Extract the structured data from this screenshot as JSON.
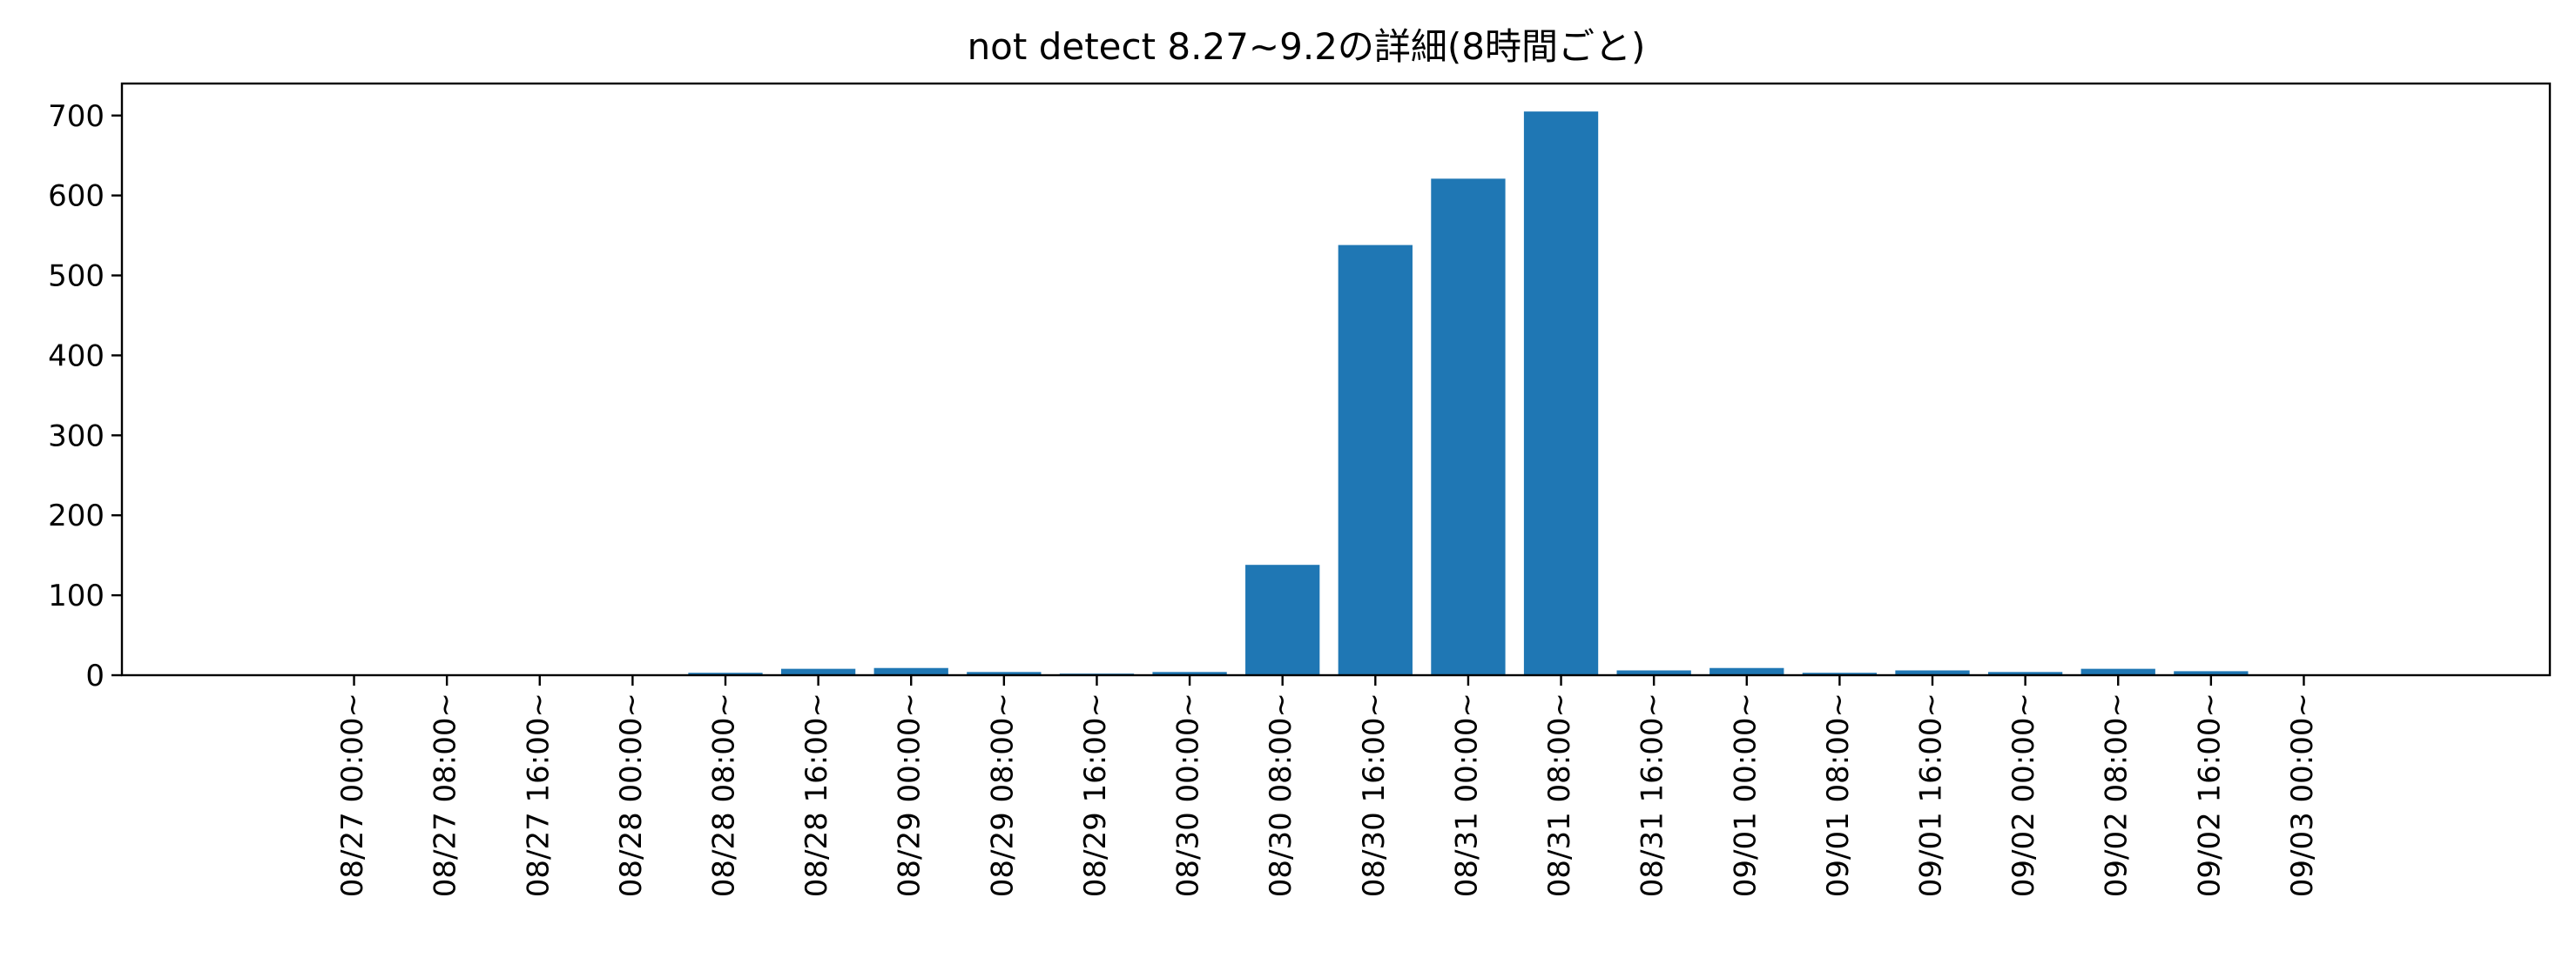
{
  "chart_data": {
    "type": "bar",
    "title": "not detect 8.27~9.2の詳細(8時間ごと)",
    "xlabel": "",
    "ylabel": "",
    "ylim": [
      0,
      740
    ],
    "yticks": [
      0,
      100,
      200,
      300,
      400,
      500,
      600,
      700
    ],
    "color": "#1f77b4",
    "grid": false,
    "legend": "none",
    "categories": [
      "08/27 00:00~",
      "08/27 08:00~",
      "08/27 16:00~",
      "08/28 00:00~",
      "08/28 08:00~",
      "08/28 16:00~",
      "08/29 00:00~",
      "08/29 08:00~",
      "08/29 16:00~",
      "08/30 00:00~",
      "08/30 08:00~",
      "08/30 16:00~",
      "08/31 00:00~",
      "08/31 08:00~",
      "08/31 16:00~",
      "09/01 00:00~",
      "09/01 08:00~",
      "09/01 16:00~",
      "09/02 00:00~",
      "09/02 08:00~",
      "09/02 16:00~",
      "09/03 00:00~"
    ],
    "values": [
      0,
      0,
      0,
      0,
      3,
      8,
      9,
      4,
      2,
      4,
      138,
      538,
      621,
      705,
      6,
      9,
      3,
      6,
      4,
      8,
      5,
      0
    ]
  }
}
